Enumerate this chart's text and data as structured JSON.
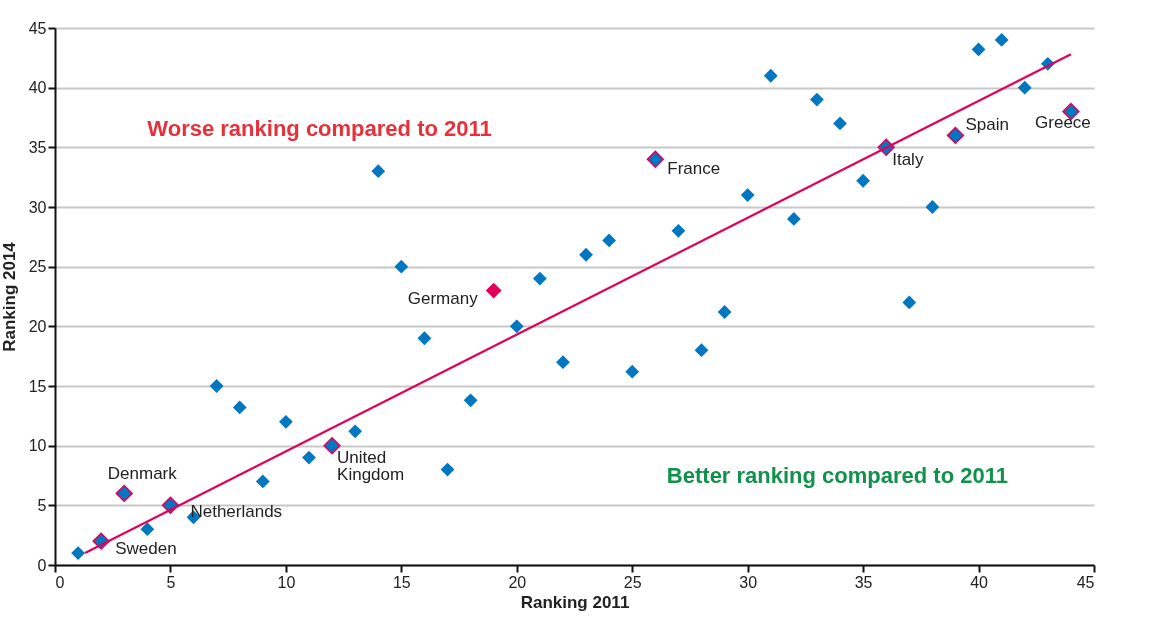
{
  "chart_data": {
    "type": "scatter",
    "xlabel": "Ranking 2011",
    "ylabel": "Ranking 2014",
    "xlim": [
      0,
      45
    ],
    "xticks": [
      0,
      5,
      10,
      15,
      20,
      25,
      30,
      35,
      40,
      45
    ],
    "ylim": [
      0,
      45
    ],
    "yticks": [
      0,
      5,
      10,
      15,
      20,
      25,
      30,
      35,
      40,
      45
    ],
    "grid": "y",
    "marker": "diamond",
    "series": [
      {
        "color": "#0077c0",
        "x": [
          1,
          4,
          6,
          7,
          8,
          9,
          10,
          11,
          13,
          14,
          15,
          16,
          17,
          18,
          20,
          21,
          22,
          23,
          24,
          25,
          27,
          28,
          29,
          30,
          31,
          32,
          33,
          34,
          35,
          37,
          38,
          40,
          41,
          42,
          43
        ],
        "values": [
          1,
          3,
          4,
          15,
          13.2,
          7,
          12,
          9,
          11.2,
          33,
          25,
          19,
          8,
          13.8,
          20,
          24,
          17,
          26,
          27.2,
          16.2,
          28,
          18,
          21.2,
          31,
          41,
          29,
          39,
          37,
          32.2,
          22,
          30,
          43.2,
          44,
          40,
          42
        ]
      },
      {
        "color": "#0077c0",
        "x": [
          2,
          3,
          5,
          12,
          26,
          36,
          39,
          44
        ],
        "values": [
          2,
          6,
          5,
          10,
          34,
          35,
          36,
          38
        ]
      },
      {
        "color": "#e2005a",
        "x": [
          19
        ],
        "values": [
          23
        ]
      },
      {
        "type": "line",
        "marker": "none",
        "color": "#e2005a",
        "x": [
          1.3,
          44
        ],
        "values": [
          1,
          42.8
        ]
      }
    ],
    "annotations": [
      "Worse ranking compared to 2011",
      "Better ranking compared to 2011",
      {
        "text": "Sweden",
        "x": 2,
        "y": 2
      },
      {
        "text": "Denmark",
        "x": 3,
        "y": 6
      },
      {
        "text": "Netherlands",
        "x": 5,
        "y": 5
      },
      {
        "text": "United Kingdom",
        "x": 12,
        "y": 10
      },
      {
        "text": "Germany",
        "x": 19,
        "y": 23
      },
      {
        "text": "France",
        "x": 26,
        "y": 34
      },
      {
        "text": "Italy",
        "x": 36,
        "y": 35
      },
      {
        "text": "Spain",
        "x": 39,
        "y": 36
      },
      {
        "text": "Greece",
        "x": 44,
        "y": 38
      }
    ]
  }
}
